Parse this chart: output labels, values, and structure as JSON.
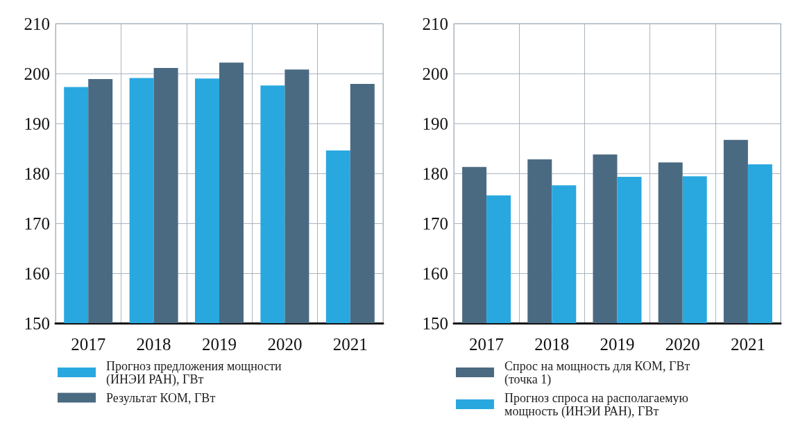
{
  "chart_data": [
    {
      "type": "bar",
      "categories": [
        "2017",
        "2018",
        "2019",
        "2020",
        "2021"
      ],
      "series": [
        {
          "name": "Прогноз предложения мощности (ИНЭИ РАН), ГВт",
          "color": "#29a8e0",
          "values": [
            197.3,
            199.1,
            199.0,
            197.6,
            184.6
          ]
        },
        {
          "name": "Результат КОМ, ГВт",
          "color": "#4a6a82",
          "values": [
            198.9,
            201.1,
            202.2,
            200.8,
            197.9
          ]
        }
      ],
      "ylim": [
        150,
        210
      ],
      "yticks": [
        150,
        160,
        170,
        180,
        190,
        200,
        210
      ],
      "grid": true,
      "legend": "bottom"
    },
    {
      "type": "bar",
      "categories": [
        "2017",
        "2018",
        "2019",
        "2020",
        "2021"
      ],
      "series": [
        {
          "name": "Спрос на мощность для КОМ, ГВт (точка 1)",
          "color": "#4a6a82",
          "values": [
            181.3,
            182.8,
            183.8,
            182.2,
            186.7
          ]
        },
        {
          "name": "Прогноз спроса на располагаемую мощность (ИНЭИ РАН), ГВт",
          "color": "#29a8e0",
          "values": [
            175.6,
            177.6,
            179.3,
            179.4,
            181.8
          ]
        }
      ],
      "ylim": [
        150,
        210
      ],
      "yticks": [
        150,
        160,
        170,
        180,
        190,
        200,
        210
      ],
      "grid": true,
      "legend": "bottom"
    }
  ]
}
